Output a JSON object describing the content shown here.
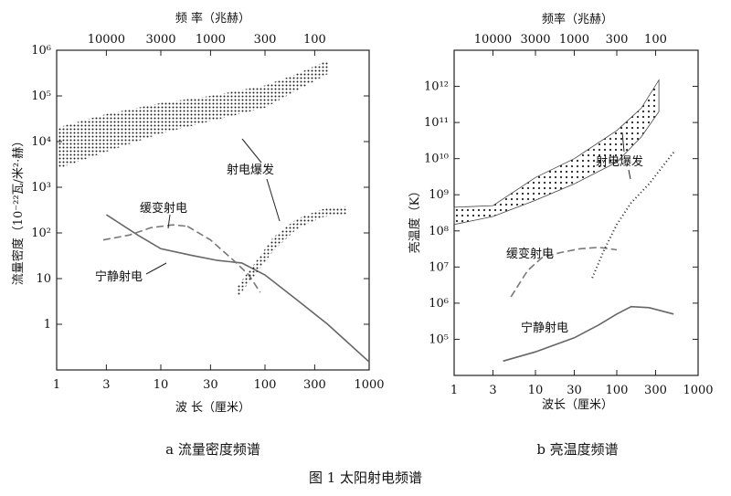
{
  "figure": {
    "caption": "图 1    太阳射电频谱"
  },
  "chart_data": [
    {
      "type": "line",
      "panel_caption": "a  流量密度频谱",
      "title": "频 率（兆赫）",
      "xlabel": "波  长（厘米）",
      "ylabel": "流量密度（10⁻²²瓦/米²·赫）",
      "xscale": "log",
      "yscale": "log",
      "xlim": [
        1,
        1000
      ],
      "ylim": [
        0.1,
        1000000
      ],
      "x_ticks": [
        "1",
        "3",
        "10",
        "30",
        "100",
        "300",
        "1000"
      ],
      "x_tick_values": [
        1,
        3,
        10,
        30,
        100,
        300,
        1000
      ],
      "y_ticks": [
        "1",
        "10",
        "10²",
        "10³",
        "10⁴",
        "10⁵",
        "10⁶"
      ],
      "y_tick_values": [
        1,
        10,
        100,
        1000,
        10000,
        100000,
        1000000
      ],
      "top_ticks": [
        "10000",
        "3000",
        "1000",
        "300",
        "100"
      ],
      "top_tick_positions": [
        3,
        10,
        30,
        100,
        300
      ],
      "series": [
        {
          "name": "宁静射电",
          "style": "solid",
          "x": [
            3,
            6,
            10,
            20,
            35,
            60,
            100,
            200,
            400,
            1000
          ],
          "y": [
            250,
            90,
            45,
            32,
            25,
            22,
            12,
            3.5,
            1.0,
            0.15
          ]
        },
        {
          "name": "缓变射电",
          "style": "dashed",
          "x": [
            2.8,
            5,
            8,
            13,
            18
          ],
          "y": [
            70,
            90,
            130,
            150,
            140
          ],
          "x2": [
            18,
            30,
            50,
            70,
            90
          ],
          "y2": [
            140,
            70,
            25,
            12,
            5
          ]
        },
        {
          "name": "射电爆发",
          "style": "dotted-band",
          "x": [
            1,
            3,
            10,
            30,
            100,
            200,
            400
          ],
          "y_low": [
            2500,
            6000,
            15000,
            28000,
            55000,
            130000,
            300000
          ],
          "y_high": [
            20000,
            40000,
            70000,
            100000,
            170000,
            300000,
            600000
          ]
        },
        {
          "name": "射电爆发",
          "style": "dotted-band",
          "x": [
            55,
            80,
            120,
            200,
            350,
            600
          ],
          "y_low": [
            4,
            12,
            40,
            120,
            220,
            260
          ],
          "y_high": [
            7,
            22,
            80,
            200,
            330,
            380
          ]
        }
      ],
      "annotations": [
        "缓变射电",
        "宁静射电",
        "射电爆发"
      ]
    },
    {
      "type": "line",
      "panel_caption": "b  亮温度频谱",
      "title": "频率（兆赫）",
      "xlabel": "波长（厘米）",
      "ylabel": "亮温度（K）",
      "xscale": "log",
      "yscale": "log",
      "xlim": [
        1,
        1000
      ],
      "ylim": [
        10000,
        10000000000000
      ],
      "x_ticks": [
        "1",
        "3",
        "10",
        "30",
        "100",
        "300",
        "1000"
      ],
      "x_tick_values": [
        1,
        3,
        10,
        30,
        100,
        300,
        1000
      ],
      "y_ticks": [
        "10⁵",
        "10⁶",
        "10⁷",
        "10⁸",
        "10⁹",
        "10¹⁰",
        "10¹¹",
        "10¹²"
      ],
      "y_tick_values": [
        100000,
        1000000,
        10000000,
        100000000,
        1000000000,
        10000000000,
        100000000000,
        1000000000000
      ],
      "top_ticks": [
        "10000",
        "3000",
        "1000",
        "300",
        "100"
      ],
      "top_tick_positions": [
        3,
        10,
        30,
        100,
        300
      ],
      "series": [
        {
          "name": "宁静射电",
          "style": "solid",
          "x": [
            4,
            10,
            30,
            60,
            100,
            150,
            250,
            500
          ],
          "y": [
            25000,
            45000,
            110000,
            250000,
            500000,
            800000,
            750000,
            500000
          ]
        },
        {
          "name": "缓变射电",
          "style": "dashed",
          "x": [
            5,
            8,
            12,
            20,
            35,
            60,
            100
          ],
          "y": [
            1500000,
            8000000,
            18000000,
            25000000,
            32000000,
            35000000,
            30000000
          ]
        },
        {
          "name": "射电爆发",
          "style": "dotted-band",
          "x": [
            1,
            3,
            10,
            30,
            100,
            200,
            330
          ],
          "y_low": [
            150000000,
            250000000,
            700000000,
            2000000000,
            8000000000,
            40000000000,
            200000000000
          ],
          "y_high": [
            450000000,
            500000000,
            3000000000,
            10000000000,
            60000000000,
            250000000000,
            1500000000000
          ]
        },
        {
          "name": "射电爆发",
          "style": "dotted",
          "x": [
            50,
            70,
            100,
            150,
            250,
            500
          ],
          "y": [
            5000000,
            30000000,
            150000000,
            600000000,
            2000000000,
            15000000000
          ]
        }
      ],
      "annotations": [
        "缓变射电",
        "宁静射电",
        "射电爆发"
      ]
    }
  ]
}
